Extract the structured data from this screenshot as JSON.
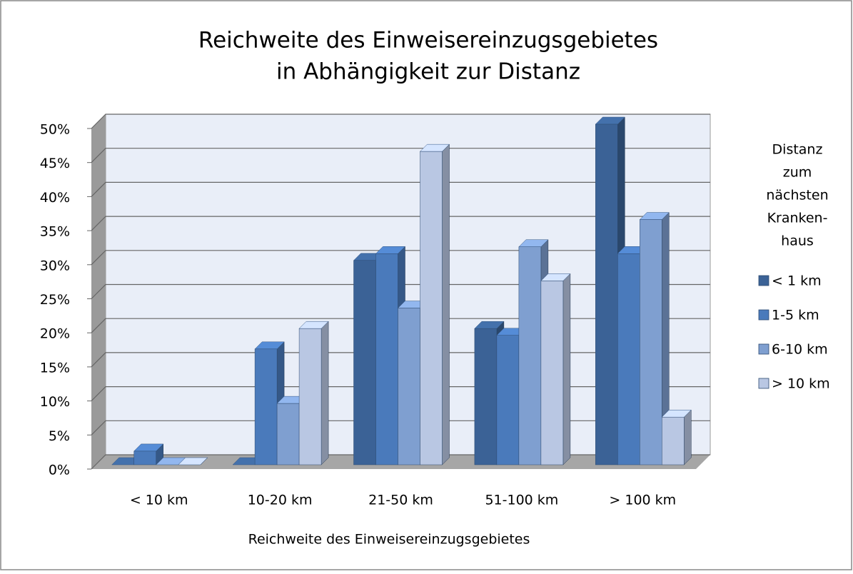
{
  "chart_data": {
    "type": "bar3d",
    "title": [
      "Reichweite des Einweisereinzugsgebietes",
      "in Abhängigkeit zur Distanz"
    ],
    "x_label": "Reichweite des Einweisereinzugsgebietes",
    "legend_title": [
      "Distanz",
      "zum",
      "nächsten",
      "Kranken-",
      "haus"
    ],
    "legend_position": "right",
    "categories": [
      "< 10 km",
      "10-20 km",
      "21-50 km",
      "51-100 km",
      "> 100 km"
    ],
    "series": [
      {
        "name": "< 1 km",
        "color": "#3b6296",
        "values": [
          0,
          0,
          30,
          20,
          50
        ]
      },
      {
        "name": "1-5 km",
        "color": "#4a7abb",
        "values": [
          2,
          17,
          31,
          19,
          31
        ]
      },
      {
        "name": "6-10 km",
        "color": "#7f9fd0",
        "values": [
          0,
          9,
          23,
          32,
          36
        ]
      },
      {
        "name": "> 10 km",
        "color": "#b9c7e3",
        "values": [
          0,
          20,
          46,
          27,
          7
        ]
      }
    ],
    "ylim": [
      0,
      50
    ],
    "yticks": [
      {
        "value": 0,
        "label": "0%"
      },
      {
        "value": 5,
        "label": "5%"
      },
      {
        "value": 10,
        "label": "10%"
      },
      {
        "value": 15,
        "label": "15%"
      },
      {
        "value": 20,
        "label": "20%"
      },
      {
        "value": 25,
        "label": "25%"
      },
      {
        "value": 30,
        "label": "30%"
      },
      {
        "value": 35,
        "label": "35%"
      },
      {
        "value": 40,
        "label": "40%"
      },
      {
        "value": 45,
        "label": "45%"
      },
      {
        "value": 50,
        "label": "50%"
      }
    ],
    "grid": true
  }
}
